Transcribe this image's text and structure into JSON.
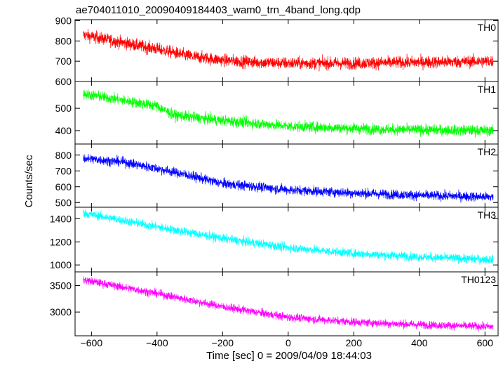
{
  "chart_data": {
    "type": "line",
    "title": "ae704011010_20090409184403_wam0_trn_4band_long.qdp",
    "xlabel": "Time [sec] 0 = 2009/04/09 18:44:03",
    "ylabel": "Counts/sec",
    "xlim": [
      -650,
      640
    ],
    "x_ticks": [
      -600,
      -400,
      -200,
      0,
      200,
      400,
      600
    ],
    "x_tick_labels": [
      "−600",
      "−400",
      "−200",
      "0",
      "200",
      "400",
      "600"
    ],
    "x_range": [
      -625,
      625
    ],
    "panels": [
      {
        "name": "TH0",
        "color": "#ff0000",
        "ylim": [
          600,
          905
        ],
        "y_ticks": [
          600,
          700,
          800,
          900
        ],
        "trend": [
          [
            -625,
            830
          ],
          [
            -500,
            790
          ],
          [
            -400,
            760
          ],
          [
            -300,
            725
          ],
          [
            -200,
            705
          ],
          [
            -100,
            695
          ],
          [
            0,
            690
          ],
          [
            200,
            690
          ],
          [
            400,
            695
          ],
          [
            625,
            700
          ]
        ],
        "noise": 28
      },
      {
        "name": "TH1",
        "color": "#00ff00",
        "ylim": [
          340,
          620
        ],
        "y_ticks": [
          400,
          500
        ],
        "y_tick_labels": [
          "400",
          "500"
        ],
        "trend": [
          [
            -625,
            565
          ],
          [
            -500,
            535
          ],
          [
            -400,
            510
          ],
          [
            -350,
            470
          ],
          [
            -200,
            445
          ],
          [
            0,
            420
          ],
          [
            100,
            415
          ],
          [
            300,
            405
          ],
          [
            625,
            400
          ]
        ],
        "noise": 22
      },
      {
        "name": "TH2",
        "color": "#0000ff",
        "ylim": [
          470,
          870
        ],
        "y_ticks": [
          500,
          600,
          700,
          800
        ],
        "trend": [
          [
            -625,
            780
          ],
          [
            -500,
            755
          ],
          [
            -400,
            715
          ],
          [
            -300,
            670
          ],
          [
            -200,
            620
          ],
          [
            0,
            580
          ],
          [
            200,
            560
          ],
          [
            400,
            545
          ],
          [
            625,
            535
          ]
        ],
        "noise": 28
      },
      {
        "name": "TH3",
        "color": "#00ffff",
        "ylim": [
          940,
          1500
        ],
        "y_ticks": [
          1000,
          1200,
          1400
        ],
        "trend": [
          [
            -625,
            1450
          ],
          [
            -400,
            1330
          ],
          [
            -200,
            1230
          ],
          [
            0,
            1150
          ],
          [
            200,
            1100
          ],
          [
            400,
            1070
          ],
          [
            625,
            1045
          ]
        ],
        "noise": 35
      },
      {
        "name": "TH0123",
        "color": "#ff00ff",
        "ylim": [
          2550,
          3760
        ],
        "y_ticks": [
          3000,
          3500
        ],
        "trend": [
          [
            -625,
            3610
          ],
          [
            -400,
            3350
          ],
          [
            -200,
            3100
          ],
          [
            0,
            2900
          ],
          [
            200,
            2810
          ],
          [
            400,
            2760
          ],
          [
            625,
            2720
          ]
        ],
        "noise": 70
      }
    ]
  }
}
